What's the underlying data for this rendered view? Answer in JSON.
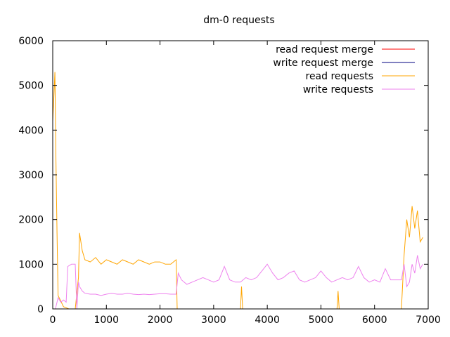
{
  "chart_data": {
    "type": "line",
    "title": "dm-0 requests",
    "xlabel": "",
    "ylabel": "",
    "xlim": [
      0,
      7000
    ],
    "ylim": [
      0,
      6000
    ],
    "x_ticks": [
      0,
      1000,
      2000,
      3000,
      4000,
      5000,
      6000,
      7000
    ],
    "y_ticks": [
      0,
      1000,
      2000,
      3000,
      4000,
      5000,
      6000
    ],
    "grid": false,
    "legend_position": "top-right",
    "series": [
      {
        "name": "read request merge",
        "color": "#ff0000",
        "points": [
          [
            0,
            0
          ],
          [
            7000,
            0
          ]
        ]
      },
      {
        "name": "write request merge",
        "color": "#000080",
        "points": [
          [
            0,
            0
          ],
          [
            7000,
            0
          ]
        ]
      },
      {
        "name": "read requests",
        "color": "#ffa500",
        "points": [
          [
            0,
            4200
          ],
          [
            20,
            4700
          ],
          [
            40,
            5300
          ],
          [
            60,
            3300
          ],
          [
            80,
            1700
          ],
          [
            100,
            300
          ],
          [
            200,
            50
          ],
          [
            300,
            0
          ],
          [
            420,
            0
          ],
          [
            480,
            700
          ],
          [
            500,
            1700
          ],
          [
            550,
            1300
          ],
          [
            600,
            1100
          ],
          [
            700,
            1050
          ],
          [
            800,
            1150
          ],
          [
            900,
            1000
          ],
          [
            1000,
            1100
          ],
          [
            1100,
            1050
          ],
          [
            1200,
            1000
          ],
          [
            1300,
            1100
          ],
          [
            1400,
            1050
          ],
          [
            1500,
            1000
          ],
          [
            1600,
            1100
          ],
          [
            1700,
            1050
          ],
          [
            1800,
            1000
          ],
          [
            1900,
            1050
          ],
          [
            2000,
            1050
          ],
          [
            2100,
            1000
          ],
          [
            2200,
            1000
          ],
          [
            2300,
            1100
          ],
          [
            2320,
            0
          ],
          [
            3500,
            0
          ],
          [
            3520,
            500
          ],
          [
            3540,
            0
          ],
          [
            5300,
            0
          ],
          [
            5320,
            400
          ],
          [
            5340,
            0
          ],
          [
            6500,
            0
          ],
          [
            6550,
            1200
          ],
          [
            6600,
            2000
          ],
          [
            6650,
            1600
          ],
          [
            6700,
            2300
          ],
          [
            6750,
            1800
          ],
          [
            6800,
            2200
          ],
          [
            6850,
            1500
          ],
          [
            6900,
            1600
          ]
        ]
      },
      {
        "name": "write requests",
        "color": "#ee82ee",
        "points": [
          [
            0,
            0
          ],
          [
            50,
            0
          ],
          [
            100,
            250
          ],
          [
            150,
            150
          ],
          [
            200,
            200
          ],
          [
            250,
            150
          ],
          [
            280,
            950
          ],
          [
            350,
            1000
          ],
          [
            420,
            1000
          ],
          [
            450,
            0
          ],
          [
            480,
            600
          ],
          [
            500,
            500
          ],
          [
            550,
            400
          ],
          [
            600,
            350
          ],
          [
            700,
            330
          ],
          [
            800,
            330
          ],
          [
            900,
            300
          ],
          [
            1000,
            330
          ],
          [
            1100,
            350
          ],
          [
            1200,
            330
          ],
          [
            1300,
            330
          ],
          [
            1400,
            350
          ],
          [
            1500,
            330
          ],
          [
            1600,
            320
          ],
          [
            1700,
            330
          ],
          [
            1800,
            320
          ],
          [
            1900,
            330
          ],
          [
            2000,
            340
          ],
          [
            2100,
            340
          ],
          [
            2200,
            330
          ],
          [
            2300,
            330
          ],
          [
            2340,
            800
          ],
          [
            2400,
            650
          ],
          [
            2500,
            550
          ],
          [
            2600,
            600
          ],
          [
            2700,
            650
          ],
          [
            2800,
            700
          ],
          [
            2900,
            650
          ],
          [
            3000,
            600
          ],
          [
            3100,
            650
          ],
          [
            3200,
            950
          ],
          [
            3300,
            650
          ],
          [
            3400,
            600
          ],
          [
            3500,
            600
          ],
          [
            3600,
            700
          ],
          [
            3700,
            650
          ],
          [
            3800,
            700
          ],
          [
            3900,
            850
          ],
          [
            4000,
            1000
          ],
          [
            4100,
            800
          ],
          [
            4200,
            650
          ],
          [
            4300,
            700
          ],
          [
            4400,
            800
          ],
          [
            4500,
            850
          ],
          [
            4600,
            650
          ],
          [
            4700,
            600
          ],
          [
            4800,
            650
          ],
          [
            4900,
            700
          ],
          [
            5000,
            850
          ],
          [
            5100,
            700
          ],
          [
            5200,
            600
          ],
          [
            5300,
            650
          ],
          [
            5400,
            700
          ],
          [
            5500,
            650
          ],
          [
            5600,
            700
          ],
          [
            5700,
            950
          ],
          [
            5800,
            700
          ],
          [
            5900,
            600
          ],
          [
            6000,
            650
          ],
          [
            6100,
            600
          ],
          [
            6200,
            900
          ],
          [
            6300,
            650
          ],
          [
            6400,
            650
          ],
          [
            6500,
            650
          ],
          [
            6550,
            1000
          ],
          [
            6600,
            500
          ],
          [
            6650,
            600
          ],
          [
            6700,
            1000
          ],
          [
            6750,
            800
          ],
          [
            6800,
            1200
          ],
          [
            6850,
            900
          ],
          [
            6900,
            1000
          ]
        ]
      }
    ]
  }
}
